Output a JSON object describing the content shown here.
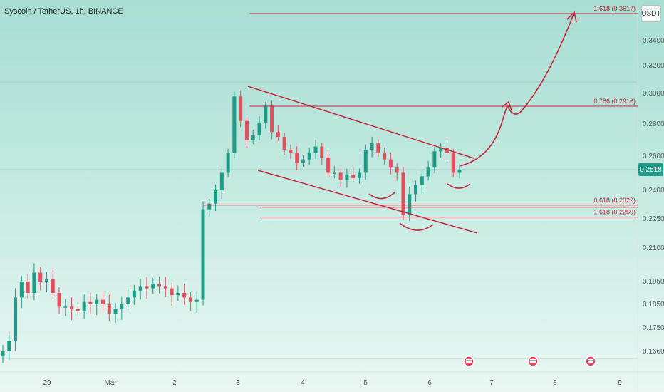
{
  "header": {
    "title": "Syscoin / TetherUS, 1h, BINANCE",
    "unit_button": "USDT"
  },
  "current_price": {
    "value": 0.2518,
    "label": "0.2518"
  },
  "colors": {
    "up": "#1e9b86",
    "down": "#e0505e",
    "drawing": "#c2283c",
    "grid": "#9fcdc4",
    "axis_text": "#4b5a58"
  },
  "chart_data": {
    "type": "candlestick",
    "symbol": "Syscoin / TetherUS",
    "interval": "1h",
    "exchange": "BINANCE",
    "x_axis_labels": [
      "29",
      "Mar",
      "2",
      "3",
      "4",
      "5",
      "6",
      "7",
      "8",
      "9"
    ],
    "y_axis_labels": [
      "0.3617",
      "0.3400",
      "0.3200",
      "0.3000",
      "0.2800",
      "0.2600",
      "0.2518",
      "0.2400",
      "0.2250",
      "0.2100",
      "0.1950",
      "0.1850",
      "0.1750",
      "0.1660"
    ],
    "ylim": [
      0.163,
      0.364
    ],
    "fib_levels": [
      {
        "label": "1.618 (0.3617)",
        "price": 0.3617
      },
      {
        "label": "0.786 (0.2916)",
        "price": 0.2916
      },
      {
        "label": "0.618 (0.2322)",
        "price": 0.2322
      },
      {
        "label": "1.618 (0.2259)",
        "price": 0.2259
      }
    ],
    "price_path": [
      0.166,
      0.17,
      0.188,
      0.195,
      0.19,
      0.199,
      0.195,
      0.196,
      0.19,
      0.184,
      0.184,
      0.183,
      0.182,
      0.186,
      0.185,
      0.187,
      0.185,
      0.181,
      0.183,
      0.185,
      0.188,
      0.191,
      0.193,
      0.192,
      0.194,
      0.193,
      0.192,
      0.189,
      0.19,
      0.188,
      0.186,
      0.187,
      0.23,
      0.233,
      0.24,
      0.25,
      0.262,
      0.298,
      0.282,
      0.27,
      0.273,
      0.281,
      0.292,
      0.275,
      0.272,
      0.264,
      0.262,
      0.256,
      0.258,
      0.262,
      0.266,
      0.259,
      0.25,
      0.25,
      0.246,
      0.249,
      0.247,
      0.25,
      0.264,
      0.268,
      0.262,
      0.258,
      0.253,
      0.25,
      0.227,
      0.238,
      0.243,
      0.248,
      0.253,
      0.263,
      0.265,
      0.262,
      0.25,
      0.2518
    ]
  }
}
